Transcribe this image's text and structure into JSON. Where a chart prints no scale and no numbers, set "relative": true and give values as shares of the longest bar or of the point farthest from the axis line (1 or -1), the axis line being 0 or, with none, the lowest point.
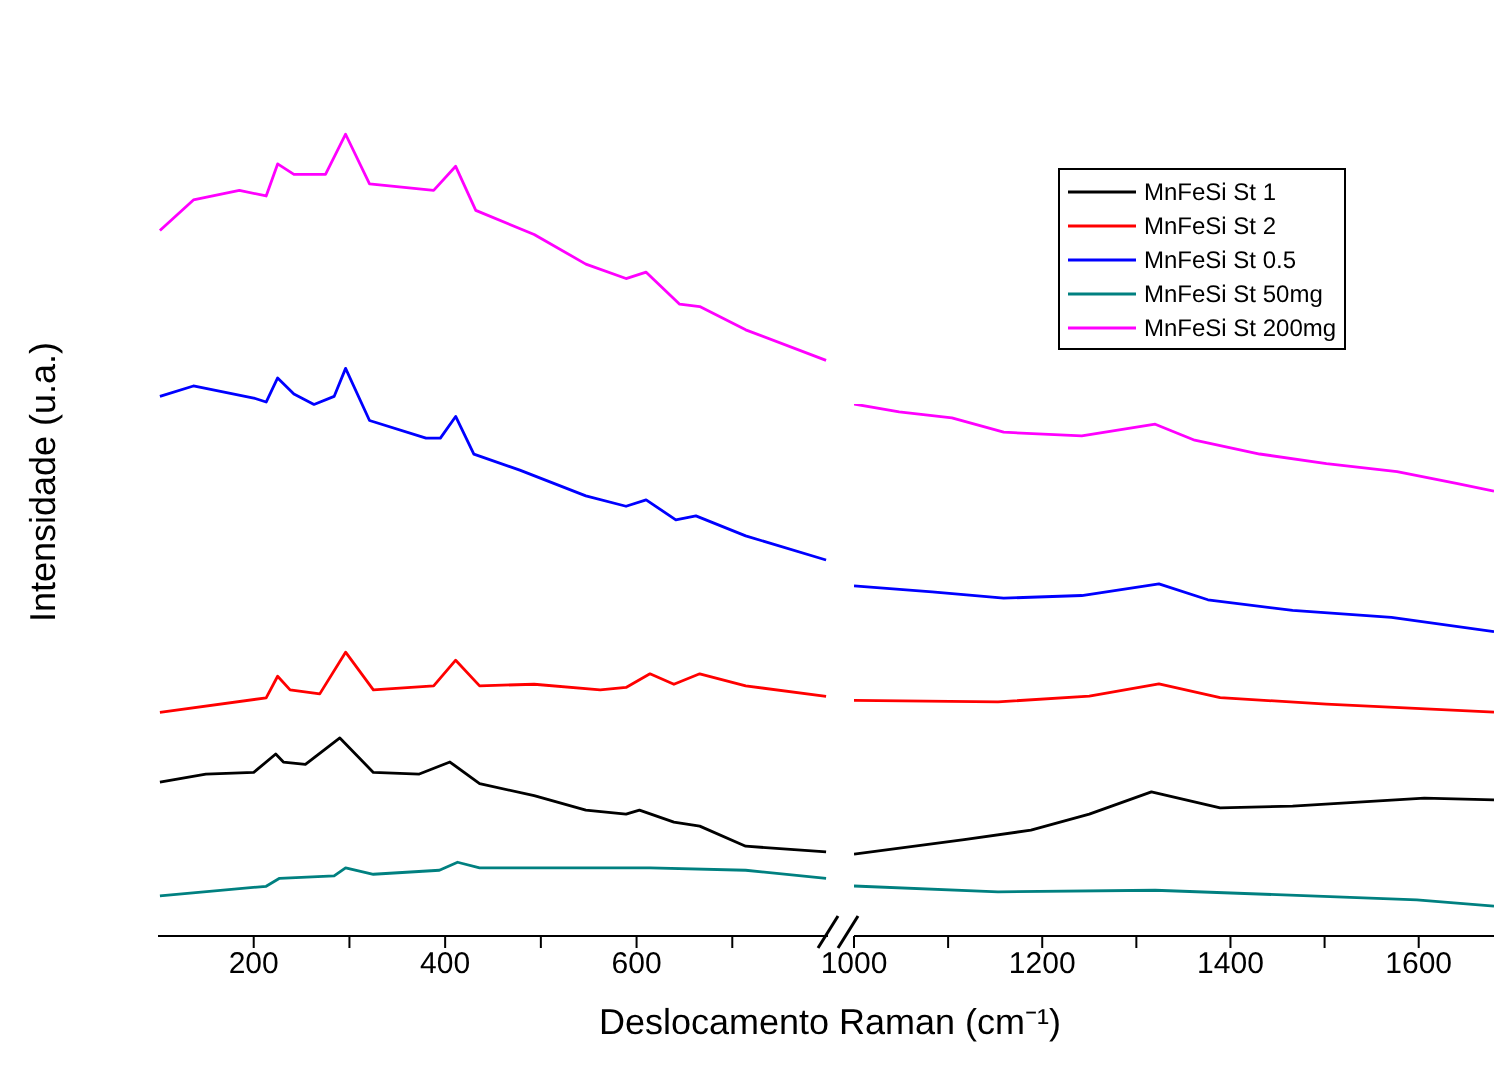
{
  "chart_data": [
    {
      "type": "line",
      "relative": true,
      "ylabel": "Intensidade (u.a.)",
      "xlabel": "Deslocamento Raman (cm⁻¹)",
      "xlim": [
        100,
        800
      ],
      "xticks": [
        200,
        {
          "value": 300,
          "label": null
        },
        400,
        {
          "value": 500,
          "label": null
        },
        600,
        {
          "value": 700,
          "label": null
        }
      ],
      "grid": false,
      "legend": false,
      "marker": "none",
      "line_style": "solid",
      "series": [
        {
          "color": "#000000",
          "x": [
            102,
            150,
            200,
            223,
            231,
            254,
            290,
            325,
            373,
            405,
            436,
            493,
            547,
            589,
            603,
            639,
            666,
            714,
            798
          ],
          "values": [
            0.192,
            0.202,
            0.204,
            0.227,
            0.217,
            0.214,
            0.247,
            0.204,
            0.202,
            0.217,
            0.19,
            0.175,
            0.157,
            0.152,
            0.157,
            0.142,
            0.137,
            0.112,
            0.105
          ]
        },
        {
          "color": "#ff0000",
          "x": [
            102,
            213,
            225,
            238,
            269,
            296,
            325,
            388,
            411,
            436,
            493,
            562,
            589,
            614,
            639,
            666,
            714,
            798
          ],
          "values": [
            0.279,
            0.297,
            0.324,
            0.307,
            0.302,
            0.354,
            0.307,
            0.312,
            0.344,
            0.312,
            0.314,
            0.307,
            0.31,
            0.327,
            0.314,
            0.327,
            0.312,
            0.299
          ]
        },
        {
          "color": "#0000ff",
          "x": [
            102,
            137,
            200,
            213,
            225,
            242,
            263,
            284,
            296,
            321,
            380,
            395,
            411,
            430,
            478,
            547,
            589,
            610,
            641,
            662,
            714,
            798
          ],
          "values": [
            0.673,
            0.686,
            0.671,
            0.666,
            0.696,
            0.676,
            0.663,
            0.673,
            0.708,
            0.643,
            0.621,
            0.621,
            0.648,
            0.601,
            0.581,
            0.549,
            0.536,
            0.544,
            0.519,
            0.524,
            0.499,
            0.469
          ]
        },
        {
          "color": "#008080",
          "x": [
            102,
            213,
            227,
            284,
            296,
            325,
            394,
            413,
            436,
            589,
            614,
            714,
            798
          ],
          "values": [
            0.05,
            0.062,
            0.072,
            0.075,
            0.085,
            0.077,
            0.082,
            0.092,
            0.085,
            0.085,
            0.085,
            0.082,
            0.072
          ]
        },
        {
          "color": "#ff00ff",
          "x": [
            102,
            137,
            185,
            213,
            225,
            242,
            275,
            296,
            321,
            388,
            411,
            432,
            493,
            547,
            589,
            610,
            645,
            666,
            714,
            798
          ],
          "values": [
            0.88,
            0.918,
            0.93,
            0.923,
            0.963,
            0.95,
            0.95,
            1.0,
            0.938,
            0.93,
            0.96,
            0.905,
            0.875,
            0.838,
            0.82,
            0.828,
            0.788,
            0.785,
            0.756,
            0.718
          ]
        }
      ]
    },
    {
      "type": "line",
      "relative": true,
      "xlim": [
        1000,
        1680
      ],
      "xticks": [
        1000,
        {
          "value": 1100,
          "label": null
        },
        1200,
        {
          "value": 1300,
          "label": null
        },
        1400,
        {
          "value": 1500,
          "label": null
        },
        1600
      ],
      "grid": false,
      "legend": "top left",
      "marker": "none",
      "line_style": "solid",
      "series": [
        {
          "name": "MnFeSi St 1",
          "color": "#000000",
          "x": [
            1000,
            1117,
            1188,
            1250,
            1316,
            1389,
            1466,
            1606,
            1680
          ],
          "values": [
            0.154,
            0.181,
            0.199,
            0.229,
            0.271,
            0.241,
            0.244,
            0.259,
            0.256
          ]
        },
        {
          "name": "MnFeSi St 2",
          "color": "#ff0000",
          "x": [
            1000,
            1153,
            1250,
            1324,
            1389,
            1502,
            1680
          ],
          "values": [
            0.443,
            0.44,
            0.451,
            0.474,
            0.448,
            0.436,
            0.421
          ]
        },
        {
          "name": "MnFeSi St 0.5",
          "color": "#0000ff",
          "x": [
            1000,
            1083,
            1159,
            1242,
            1324,
            1376,
            1466,
            1571,
            1680
          ],
          "values": [
            0.658,
            0.647,
            0.635,
            0.64,
            0.662,
            0.632,
            0.612,
            0.599,
            0.572
          ]
        },
        {
          "name": "MnFeSi St 50mg",
          "color": "#008080",
          "x": [
            1000,
            1153,
            1320,
            1598,
            1680
          ],
          "values": [
            0.094,
            0.083,
            0.086,
            0.068,
            0.056
          ]
        },
        {
          "name": "MnFeSi St 200mg",
          "color": "#ff00ff",
          "x": [
            1000,
            1048,
            1104,
            1159,
            1242,
            1320,
            1362,
            1431,
            1502,
            1577,
            1640,
            1680
          ],
          "values": [
            1,
            0.985,
            0.974,
            0.947,
            0.94,
            0.962,
            0.932,
            0.906,
            0.888,
            0.873,
            0.851,
            0.836
          ]
        }
      ]
    }
  ]
}
